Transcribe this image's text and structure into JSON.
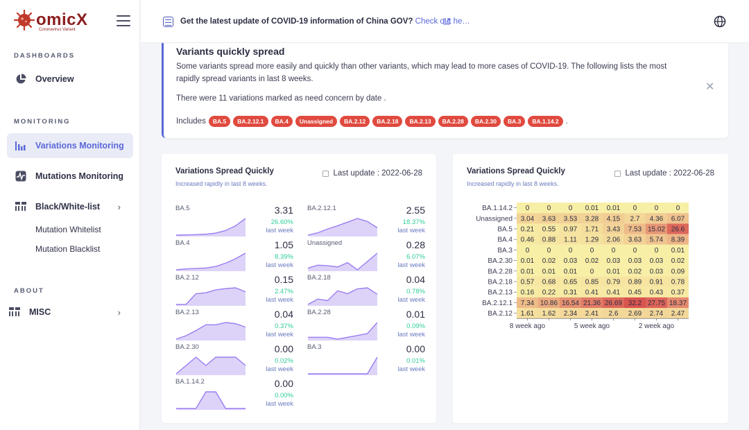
{
  "app": {
    "logo_text": "omicX",
    "logo_sub": "Coronavirus Variant"
  },
  "sidebar": {
    "sections": {
      "dashboards": "DASHBOARDS",
      "monitoring": "MONITORING",
      "about": "ABOUT"
    },
    "items": {
      "overview": "Overview",
      "variations": "Variations Monitoring",
      "mutations": "Mutations Monitoring",
      "bwlist": "Black/White-list",
      "whitelist": "Mutation Whitelist",
      "blacklist": "Mutation Blacklist",
      "misc": "MISC"
    }
  },
  "topbar": {
    "news_text": "Get the latest update of COVID-19 information of China GOV?",
    "news_link": "Check out he…"
  },
  "alert": {
    "title": "Variants quickly spread",
    "text": "Some variants spread more easily and quickly than other variants, which may lead to more cases of COVID-19. The following lists the most rapidly spread variants in last 8 weeks.",
    "text2": "There were 11 variations marked as need concern by date .",
    "includes_label": "Includes",
    "tags": [
      "BA.5",
      "BA.2.12.1",
      "BA.4",
      "Unassigned",
      "BA.2.12",
      "BA.2.18",
      "BA.2.13",
      "BA.2.28",
      "BA.2.30",
      "BA.3",
      "BA.1.14.2"
    ],
    "trailing": "."
  },
  "left_panel": {
    "title": "Variations Spread Quickly",
    "subtitle": "Increased rapidly in last 8 weeks.",
    "update": "Last update : 2022-06-28",
    "last_week": "last week",
    "variants": [
      {
        "name": "BA.5",
        "value": "3.31",
        "pct": "26.60%",
        "trend": [
          0.21,
          0.55,
          0.97,
          1.71,
          3.43,
          7.53,
          15.02,
          26.6
        ]
      },
      {
        "name": "BA.2.12.1",
        "value": "2.55",
        "pct": "18.37%",
        "trend": [
          7.34,
          10.86,
          16.54,
          21.36,
          26.69,
          32.2,
          27.75,
          18.37
        ]
      },
      {
        "name": "BA.4",
        "value": "1.05",
        "pct": "8.39%",
        "trend": [
          0.46,
          0.88,
          1.11,
          1.29,
          2.06,
          3.63,
          5.74,
          8.39
        ]
      },
      {
        "name": "Unassigned",
        "value": "0.28",
        "pct": "6.07%",
        "trend": [
          3.04,
          3.63,
          3.53,
          3.28,
          4.15,
          2.7,
          4.36,
          6.07
        ]
      },
      {
        "name": "BA.2.12",
        "value": "0.15",
        "pct": "2.47%",
        "trend": [
          1.61,
          1.62,
          2.34,
          2.41,
          2.6,
          2.69,
          2.74,
          2.47
        ]
      },
      {
        "name": "BA.2.18",
        "value": "0.04",
        "pct": "0.78%",
        "trend": [
          0.57,
          0.68,
          0.65,
          0.85,
          0.79,
          0.89,
          0.91,
          0.78
        ]
      },
      {
        "name": "BA.2.13",
        "value": "0.04",
        "pct": "0.37%",
        "trend": [
          0.16,
          0.22,
          0.31,
          0.41,
          0.41,
          0.45,
          0.43,
          0.37
        ]
      },
      {
        "name": "BA.2.28",
        "value": "0.01",
        "pct": "0.09%",
        "trend": [
          0.01,
          0.01,
          0.01,
          0,
          0.01,
          0.02,
          0.03,
          0.09
        ]
      },
      {
        "name": "BA.2.30",
        "value": "0.00",
        "pct": "0.02%",
        "trend": [
          0.01,
          0.02,
          0.03,
          0.02,
          0.03,
          0.03,
          0.03,
          0.02
        ]
      },
      {
        "name": "BA.3",
        "value": "0.00",
        "pct": "0.01%",
        "trend": [
          0,
          0,
          0,
          0,
          0,
          0,
          0,
          0.01
        ]
      },
      {
        "name": "BA.1.14.2",
        "value": "0.00",
        "pct": "0.00%",
        "trend": [
          0,
          0,
          0,
          0.01,
          0.01,
          0,
          0,
          0
        ]
      }
    ]
  },
  "right_panel": {
    "title": "Variations Spread Quickly",
    "subtitle": "Increased rapidly in last 8 weeks.",
    "update": "Last update : 2022-06-28"
  },
  "chart_data": {
    "type": "heatmap",
    "rows": [
      "BA.1.14.2",
      "Unassigned",
      "BA.5",
      "BA.4",
      "BA.3",
      "BA.2.30",
      "BA.2.28",
      "BA.2.18",
      "BA.2.13",
      "BA.2.12.1",
      "BA.2.12"
    ],
    "x_tick_labels": [
      "8 week ago",
      "5 week ago",
      "2 week ago"
    ],
    "values": [
      [
        "0",
        "0",
        "0",
        "0.01",
        "0.01",
        "0",
        "0",
        "0"
      ],
      [
        "3.04",
        "3.63",
        "3.53",
        "3.28",
        "4.15",
        "2.7",
        "4.36",
        "6.07"
      ],
      [
        "0.21",
        "0.55",
        "0.97",
        "1.71",
        "3.43",
        "7.53",
        "15.02",
        "26.6"
      ],
      [
        "0.46",
        "0.88",
        "1.11",
        "1.29",
        "2.06",
        "3.63",
        "5.74",
        "8.39"
      ],
      [
        "0",
        "0",
        "0",
        "0",
        "0",
        "0",
        "0",
        "0.01"
      ],
      [
        "0.01",
        "0.02",
        "0.03",
        "0.02",
        "0.03",
        "0.03",
        "0.03",
        "0.02"
      ],
      [
        "0.01",
        "0.01",
        "0.01",
        "0",
        "0.01",
        "0.02",
        "0.03",
        "0.09"
      ],
      [
        "0.57",
        "0.68",
        "0.65",
        "0.85",
        "0.79",
        "0.89",
        "0.91",
        "0.78"
      ],
      [
        "0.16",
        "0.22",
        "0.31",
        "0.41",
        "0.41",
        "0.45",
        "0.43",
        "0.37"
      ],
      [
        "7.34",
        "10.86",
        "16.54",
        "21.36",
        "26.69",
        "32.2",
        "27.75",
        "18.37"
      ],
      [
        "1.61",
        "1.62",
        "2.34",
        "2.41",
        "2.6",
        "2.69",
        "2.74",
        "2.47"
      ]
    ],
    "colors": {
      "low": "#f8efa6",
      "high": "#d9534f"
    }
  }
}
